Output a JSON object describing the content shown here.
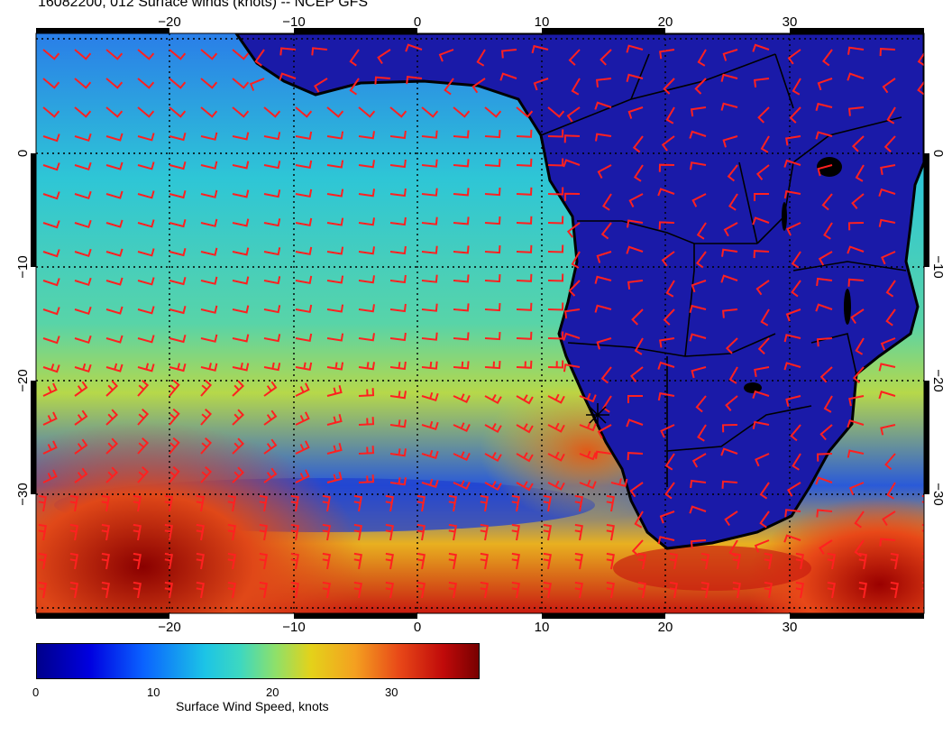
{
  "title": "16082200, 012 Surface winds (knots) -- NCEP GFS",
  "map": {
    "lon_ticks": [
      "−20",
      "−10",
      "0",
      "10",
      "20",
      "30"
    ],
    "lat_ticks": [
      "0",
      "−10",
      "−20",
      "−30"
    ],
    "colors": {
      "ocean_low": "#1a3ad8",
      "ocean_mid": "#2ec6d6",
      "ocean_high": "#e4d21a",
      "ocean_max": "#c00a0a",
      "land": "#1a1aa8",
      "barb": "#ff2020",
      "coast": "#000000"
    },
    "icons": [
      "wind-barb-icon",
      "star-marker-icon"
    ]
  },
  "colorbar": {
    "ticks": [
      "0",
      "10",
      "20",
      "30"
    ],
    "label": "Surface Wind Speed, knots"
  }
}
